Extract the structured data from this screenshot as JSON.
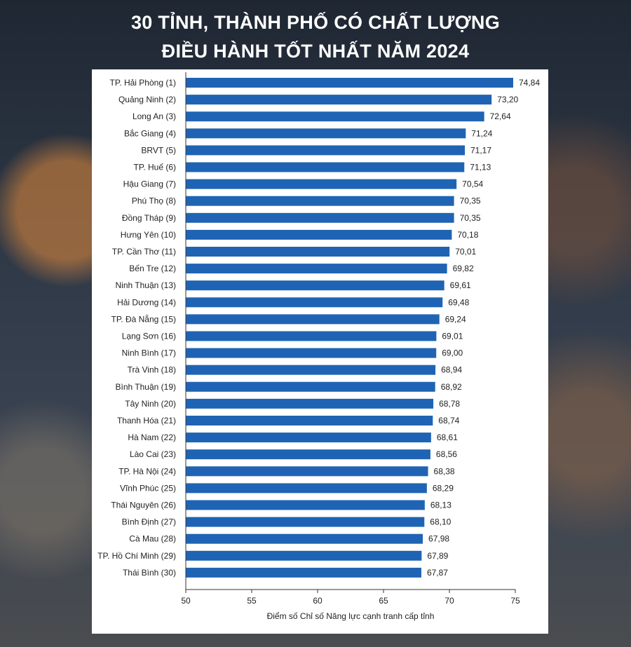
{
  "title": {
    "line1": "30 TỈNH, THÀNH PHỐ CÓ CHẤT LƯỢNG",
    "line2": "ĐIỀU HÀNH TỐT NHẤT NĂM 2024"
  },
  "chart_data": {
    "type": "bar",
    "orientation": "horizontal",
    "categories": [
      "TP. Hải Phòng (1)",
      "Quảng Ninh (2)",
      "Long An (3)",
      "Bắc Giang (4)",
      "BRVT (5)",
      "TP. Huế (6)",
      "Hậu Giang (7)",
      "Phú Thọ (8)",
      "Đồng Tháp (9)",
      "Hưng Yên (10)",
      "TP. Cần Thơ (11)",
      "Bến Tre (12)",
      "Ninh Thuận (13)",
      "Hải Dương (14)",
      "TP. Đà Nẵng (15)",
      "Lạng Sơn (16)",
      "Ninh Bình (17)",
      "Trà Vinh (18)",
      "Bình Thuận (19)",
      "Tây Ninh (20)",
      "Thanh Hóa (21)",
      "Hà Nam (22)",
      "Lào Cai (23)",
      "TP. Hà Nội (24)",
      "Vĩnh Phúc (25)",
      "Thái Nguyên (26)",
      "Bình Định (27)",
      "Cà Mau (28)",
      "TP. Hồ Chí Minh (29)",
      "Thái Bình (30)"
    ],
    "values": [
      74.84,
      73.2,
      72.64,
      71.24,
      71.17,
      71.13,
      70.54,
      70.35,
      70.35,
      70.18,
      70.01,
      69.82,
      69.61,
      69.48,
      69.24,
      69.01,
      69.0,
      68.94,
      68.92,
      68.78,
      68.74,
      68.61,
      68.56,
      68.38,
      68.29,
      68.13,
      68.1,
      67.98,
      67.89,
      67.87
    ],
    "value_labels": [
      "74,84",
      "73,20",
      "72,64",
      "71,24",
      "71,17",
      "71,13",
      "70,54",
      "70,35",
      "70,35",
      "70,18",
      "70,01",
      "69,82",
      "69,61",
      "69,48",
      "69,24",
      "69,01",
      "69,00",
      "68,94",
      "68,92",
      "68,78",
      "68,74",
      "68,61",
      "68,56",
      "68,38",
      "68,29",
      "68,13",
      "68,10",
      "67,98",
      "67,89",
      "67,87"
    ],
    "xlabel": "Điểm số Chỉ số Năng lực cạnh tranh cấp tỉnh",
    "ylabel": "",
    "xlim": [
      50,
      75
    ],
    "xticks": [
      "50",
      "55",
      "60",
      "65",
      "70",
      "75"
    ],
    "bar_color": "#1f64b4",
    "grid": false
  }
}
